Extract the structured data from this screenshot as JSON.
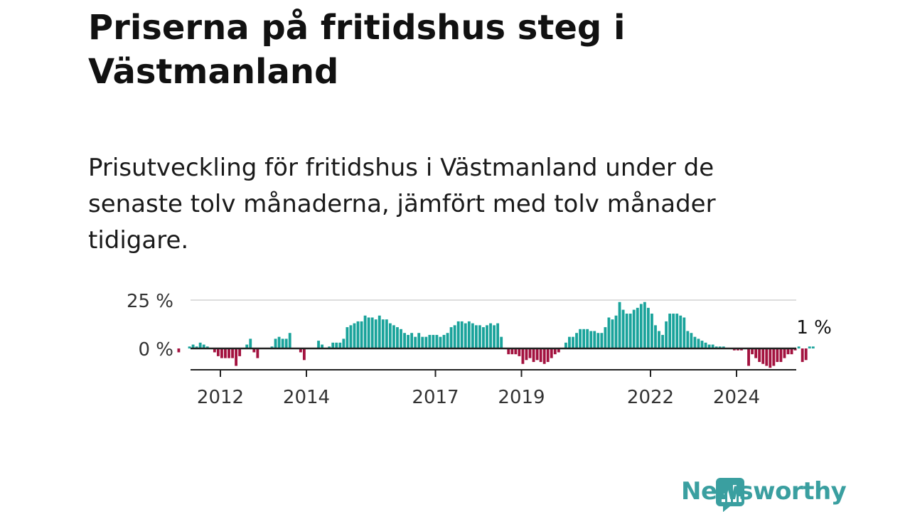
{
  "title": "Priserna på fritidshus steg i Västmanland",
  "subtitle": "Prisutveckling för fritidshus i Västmanland under de senaste tolv månaderna, jämfört med tolv månader tidigare.",
  "logo": {
    "text": "Newsworthy",
    "color": "#3a9fa0",
    "icon": "bar-chart-bubble-icon"
  },
  "colors": {
    "positive": "#1aa39b",
    "negative": "#a3123f",
    "axis": "#222222",
    "grid": "#dddddd"
  },
  "chart_data": {
    "type": "bar",
    "unit": "%",
    "ylim": [
      -12,
      27
    ],
    "y_ticks": [
      {
        "value": 25,
        "label": "25 %"
      },
      {
        "value": 0,
        "label": "0 %"
      }
    ],
    "x_ticks": [
      {
        "value": 2012.0,
        "label": "2012"
      },
      {
        "value": 2014.0,
        "label": "2014"
      },
      {
        "value": 2017.0,
        "label": "2017"
      },
      {
        "value": 2019.0,
        "label": "2019"
      },
      {
        "value": 2022.0,
        "label": "2022"
      },
      {
        "value": 2024.0,
        "label": "2024"
      }
    ],
    "x_start": 2011.0,
    "x_end": 2025.167,
    "last_value_label": "1 %",
    "grid": true,
    "monthly_values": [
      -2,
      0,
      0,
      1,
      2,
      1,
      3,
      2,
      1,
      0,
      -2,
      -4,
      -5,
      -5,
      -5,
      -5,
      -9,
      -4,
      0,
      2,
      5,
      -2,
      -5,
      0,
      0,
      0,
      1,
      5,
      6,
      5,
      5,
      8,
      0,
      0,
      -2,
      -6,
      0,
      0,
      0,
      4,
      2,
      0,
      1,
      3,
      3,
      3,
      5,
      11,
      12,
      13,
      14,
      14,
      17,
      16,
      16,
      15,
      17,
      15,
      15,
      13,
      12,
      11,
      10,
      8,
      7,
      8,
      6,
      8,
      6,
      6,
      7,
      7,
      7,
      6,
      7,
      8,
      11,
      12,
      14,
      14,
      13,
      14,
      13,
      12,
      12,
      11,
      12,
      13,
      12,
      13,
      6,
      0,
      -3,
      -3,
      -3,
      -4,
      -8,
      -6,
      -5,
      -7,
      -6,
      -7,
      -8,
      -7,
      -5,
      -3,
      -2,
      0,
      3,
      6,
      6,
      8,
      10,
      10,
      10,
      9,
      9,
      8,
      8,
      11,
      16,
      15,
      17,
      24,
      20,
      18,
      18,
      20,
      21,
      23,
      24,
      21,
      18,
      12,
      9,
      7,
      14,
      18,
      18,
      18,
      17,
      16,
      9,
      8,
      6,
      5,
      4,
      3,
      2,
      2,
      1,
      1,
      1,
      0,
      0,
      -1,
      -1,
      -1,
      0,
      -9,
      -3,
      -5,
      -7,
      -8,
      -9,
      -10,
      -9,
      -7,
      -7,
      -5,
      -3,
      -3,
      -1,
      1,
      -7,
      -6,
      1,
      1
    ]
  }
}
